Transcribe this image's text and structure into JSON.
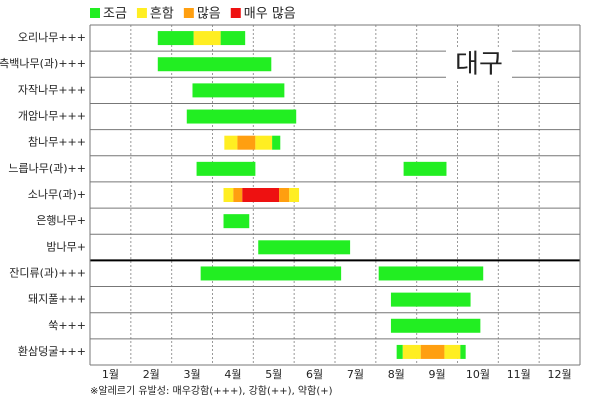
{
  "chart_data": {
    "type": "range-bar",
    "title": "대구",
    "note": "※알레르기 유발성: 매우강함(+++), 강함(++), 약함(+)",
    "legend": [
      {
        "name": "조금",
        "color": "#22ee22"
      },
      {
        "name": "흔함",
        "color": "#ffee22"
      },
      {
        "name": "많음",
        "color": "#ff9f10"
      },
      {
        "name": "매우 많음",
        "color": "#ee1111"
      }
    ],
    "xlim": [
      0,
      12
    ],
    "xticks": [
      {
        "value": 0.5,
        "label": "1월"
      },
      {
        "value": 1.5,
        "label": "2월"
      },
      {
        "value": 2.5,
        "label": "3월"
      },
      {
        "value": 3.5,
        "label": "4월"
      },
      {
        "value": 4.5,
        "label": "5월"
      },
      {
        "value": 5.5,
        "label": "6월"
      },
      {
        "value": 6.5,
        "label": "7월"
      },
      {
        "value": 7.5,
        "label": "8월"
      },
      {
        "value": 8.5,
        "label": "9월"
      },
      {
        "value": 9.5,
        "label": "10월"
      },
      {
        "value": 10.5,
        "label": "11월"
      },
      {
        "value": 11.5,
        "label": "12월"
      }
    ],
    "rows": [
      {
        "name": "오리나무+++",
        "segments": [
          {
            "start": 1.66,
            "end": 2.54,
            "level": "조금"
          },
          {
            "start": 2.54,
            "end": 3.2,
            "level": "흔함"
          },
          {
            "start": 3.2,
            "end": 3.8,
            "level": "조금"
          }
        ]
      },
      {
        "name": "측백나무(과)+++",
        "segments": [
          {
            "start": 1.66,
            "end": 4.44,
            "level": "조금"
          }
        ]
      },
      {
        "name": "자작나무+++",
        "segments": [
          {
            "start": 2.51,
            "end": 4.76,
            "level": "조금"
          }
        ]
      },
      {
        "name": "개암나무+++",
        "segments": [
          {
            "start": 2.37,
            "end": 5.05,
            "level": "조금"
          }
        ]
      },
      {
        "name": "참나무+++",
        "segments": [
          {
            "start": 3.29,
            "end": 3.61,
            "level": "흔함"
          },
          {
            "start": 3.61,
            "end": 4.05,
            "level": "많음"
          },
          {
            "start": 4.05,
            "end": 4.46,
            "level": "흔함"
          },
          {
            "start": 4.46,
            "end": 4.66,
            "level": "조금"
          }
        ]
      },
      {
        "name": "느릅나무(과)++",
        "segments": [
          {
            "start": 2.61,
            "end": 4.05,
            "level": "조금"
          },
          {
            "start": 7.68,
            "end": 8.73,
            "level": "조금"
          }
        ]
      },
      {
        "name": "소나무(과)+",
        "segments": [
          {
            "start": 3.27,
            "end": 3.51,
            "level": "흔함"
          },
          {
            "start": 3.51,
            "end": 3.73,
            "level": "많음"
          },
          {
            "start": 3.73,
            "end": 4.63,
            "level": "매우 많음"
          },
          {
            "start": 4.63,
            "end": 4.88,
            "level": "많음"
          },
          {
            "start": 4.88,
            "end": 5.12,
            "level": "흔함"
          }
        ]
      },
      {
        "name": "은행나무+",
        "segments": [
          {
            "start": 3.27,
            "end": 3.9,
            "level": "조금"
          }
        ]
      },
      {
        "name": "밤나무+",
        "segments": [
          {
            "start": 4.12,
            "end": 6.37,
            "level": "조금"
          }
        ]
      },
      {
        "name": "잔디류(과)+++",
        "segments": [
          {
            "start": 2.71,
            "end": 6.15,
            "level": "조금"
          },
          {
            "start": 7.07,
            "end": 9.63,
            "level": "조금"
          }
        ]
      },
      {
        "name": "돼지풀+++",
        "segments": [
          {
            "start": 7.37,
            "end": 9.32,
            "level": "조금"
          }
        ]
      },
      {
        "name": "쑥+++",
        "segments": [
          {
            "start": 7.37,
            "end": 9.56,
            "level": "조금"
          }
        ]
      },
      {
        "name": "환삼덩굴+++",
        "segments": [
          {
            "start": 7.51,
            "end": 7.66,
            "level": "조금"
          },
          {
            "start": 7.66,
            "end": 8.1,
            "level": "흔함"
          },
          {
            "start": 8.1,
            "end": 8.68,
            "level": "많음"
          },
          {
            "start": 8.68,
            "end": 9.07,
            "level": "흔함"
          },
          {
            "start": 9.07,
            "end": 9.2,
            "level": "조금"
          }
        ]
      }
    ]
  }
}
